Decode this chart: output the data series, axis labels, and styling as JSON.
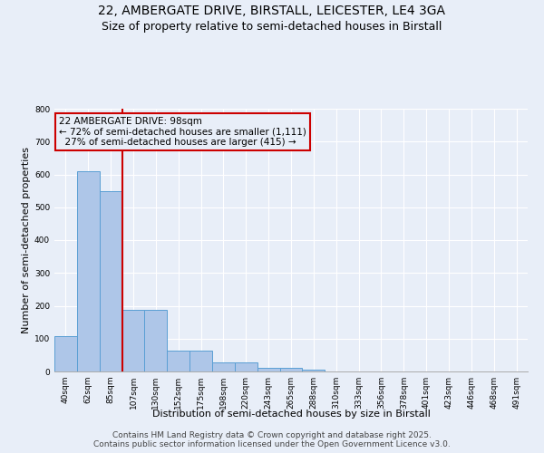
{
  "title_line1": "22, AMBERGATE DRIVE, BIRSTALL, LEICESTER, LE4 3GA",
  "title_line2": "Size of property relative to semi-detached houses in Birstall",
  "xlabel": "Distribution of semi-detached houses by size in Birstall",
  "ylabel": "Number of semi-detached properties",
  "categories": [
    "40sqm",
    "62sqm",
    "85sqm",
    "107sqm",
    "130sqm",
    "152sqm",
    "175sqm",
    "198sqm",
    "220sqm",
    "243sqm",
    "265sqm",
    "288sqm",
    "310sqm",
    "333sqm",
    "356sqm",
    "378sqm",
    "401sqm",
    "423sqm",
    "446sqm",
    "468sqm",
    "491sqm"
  ],
  "values": [
    107,
    611,
    548,
    187,
    187,
    63,
    63,
    27,
    27,
    10,
    10,
    5,
    0,
    0,
    0,
    0,
    0,
    0,
    0,
    0,
    0
  ],
  "bar_color": "#aec6e8",
  "bar_edge_color": "#5a9fd4",
  "background_color": "#e8eef8",
  "grid_color": "#ffffff",
  "annotation_box_color": "#cc0000",
  "property_label": "22 AMBERGATE DRIVE: 98sqm",
  "pct_smaller": 72,
  "n_smaller": 1111,
  "pct_larger": 27,
  "n_larger": 415,
  "red_line_x": 2.5,
  "ylim": [
    0,
    800
  ],
  "yticks": [
    0,
    100,
    200,
    300,
    400,
    500,
    600,
    700,
    800
  ],
  "footnote_line1": "Contains HM Land Registry data © Crown copyright and database right 2025.",
  "footnote_line2": "Contains public sector information licensed under the Open Government Licence v3.0.",
  "title_fontsize": 10,
  "subtitle_fontsize": 9,
  "annot_fontsize": 7.5,
  "axis_label_fontsize": 8,
  "tick_fontsize": 6.5,
  "footnote_fontsize": 6.5
}
